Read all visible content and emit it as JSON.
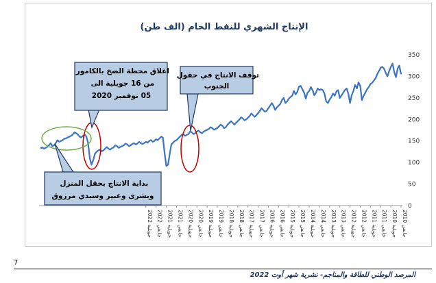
{
  "chart_data": {
    "type": "line",
    "title": "الإنتاج الشهري للنفط الخام (الف طن)",
    "xlabel": "",
    "ylabel": "",
    "ylim": [
      0,
      350
    ],
    "yticks": [
      0,
      50,
      100,
      150,
      200,
      250,
      300,
      350
    ],
    "grid": false,
    "legend": "none",
    "x_tick_labels": [
      "جانفي 2010",
      "جويلية 2010",
      "جانفي 2011",
      "جويلية 2011",
      "جانفي 2012",
      "جويلية 2012",
      "جانفي 2013",
      "جويلية 2013",
      "جانفي 2014",
      "جويلية 2014",
      "جانفي 2015",
      "جويلية 2015",
      "جانفي 2016",
      "جويلية 2016",
      "جانفي 2017",
      "جويلية 2017",
      "جانفي 2018",
      "جويلية 2018",
      "جانفي 2019",
      "جويلية 2019",
      "جانفي 2020",
      "جويلية 2020",
      "جانفي 2021",
      "جويلية 2021",
      "جانفي 2022",
      "جويلية 2022"
    ],
    "series": [
      {
        "color": "#3b74c4",
        "values": [
          305,
          325,
          318,
          298,
          310,
          330,
          322,
          312,
          300,
          308,
          318,
          322,
          320,
          312,
          305,
          295,
          290,
          285,
          282,
          275,
          270,
          262,
          255,
          245,
          278,
          286,
          272,
          280,
          266,
          256,
          238,
          260,
          272,
          268,
          262,
          256,
          250,
          268,
          265,
          255,
          260,
          252,
          246,
          238,
          242,
          260,
          268,
          270,
          268,
          272,
          262,
          256,
          268,
          275,
          266,
          262,
          248,
          262,
          270,
          278,
          276,
          264,
          258,
          266,
          255,
          252,
          248,
          242,
          238,
          250,
          245,
          236,
          232,
          228,
          222,
          232,
          238,
          232,
          226,
          220,
          218,
          222,
          226,
          220,
          215,
          210,
          206,
          210,
          214,
          208,
          204,
          200,
          198,
          202,
          205,
          200,
          196,
          192,
          188,
          192,
          196,
          192,
          188,
          182,
          180,
          185,
          188,
          184,
          180,
          178,
          176,
          180,
          182,
          178,
          176,
          174,
          172,
          168,
          170,
          174,
          172,
          168,
          166,
          170,
          172,
          166,
          164,
          162,
          166,
          164,
          160,
          156,
          152,
          150,
          146,
          142,
          120,
          95,
          92,
          122,
          158,
          160,
          156,
          152,
          154,
          150,
          148,
          152,
          150,
          146,
          148,
          145,
          143,
          145,
          148,
          144,
          142,
          145,
          143,
          140,
          138,
          142,
          144,
          140,
          138,
          136,
          134,
          138,
          140,
          135,
          133,
          130,
          132,
          136,
          132,
          128,
          126,
          130,
          128,
          125,
          120,
          105,
          95,
          110,
          145,
          160,
          165,
          162,
          158,
          160,
          165,
          168,
          170,
          165,
          162,
          160,
          158,
          156,
          155,
          152,
          150,
          148,
          152,
          145,
          140,
          138,
          145,
          140,
          136,
          134,
          132,
          135,
          133
        ]
      }
    ]
  },
  "annotations": {
    "camour_text": "اغلاق محطة الضخ بالكامور من 16 جويلية الى 05 نوفمبر 2020",
    "south_text": "توقف الانتاج في حقول الجنوب",
    "nawara_text": "بداية الانتاج بحقل المنزل وبشرى وعبير وسيدي مرزوق"
  },
  "page": {
    "number": "7",
    "footer": "المرصد الوطني للطاقة والمناجم- نشرية شهر أوت 2022"
  },
  "colors": {
    "line": "#3b74c4",
    "callout_fill": "#b8cce4",
    "callout_border": "#1f3864",
    "ellipse_red": "#c00000",
    "ellipse_green": "#70ad47",
    "title": "#1f3864"
  }
}
